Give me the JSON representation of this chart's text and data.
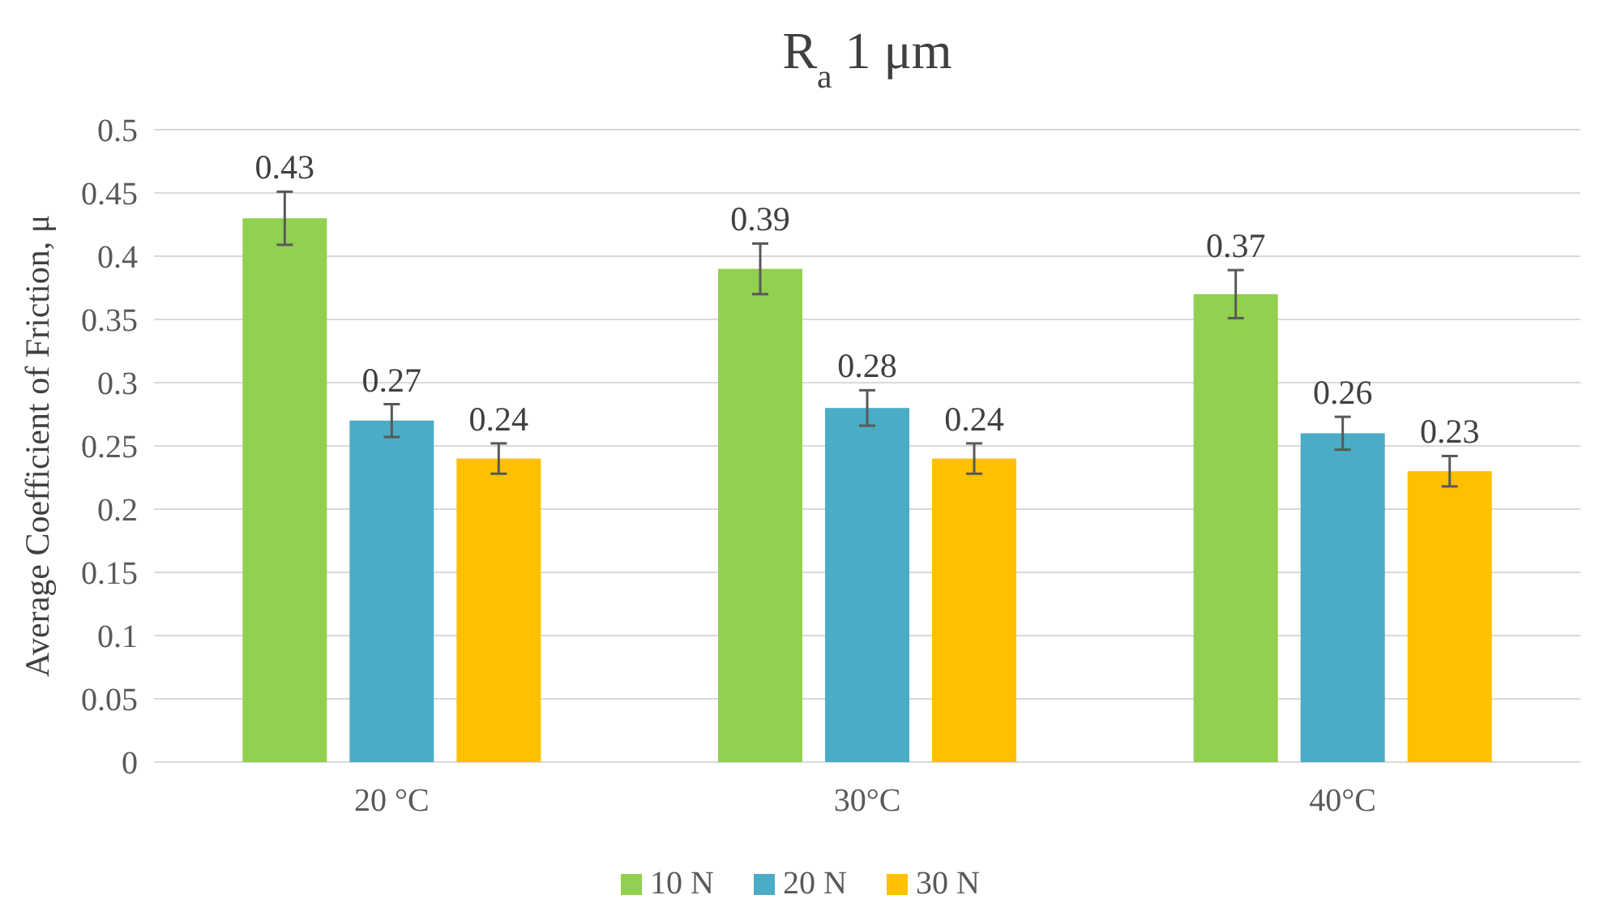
{
  "chart_data": {
    "type": "bar",
    "title": "R$_{a}$ 1 μm",
    "ylabel": "Average Coefficient of Friction, μ",
    "categories": [
      "20 °C",
      "30°C",
      "40°C"
    ],
    "series": [
      {
        "name": "10 N",
        "color": "#92d050",
        "values": [
          0.43,
          0.39,
          0.37
        ],
        "errors": [
          0.021,
          0.02,
          0.019
        ]
      },
      {
        "name": "20 N",
        "color": "#4bacc6",
        "values": [
          0.27,
          0.28,
          0.26
        ],
        "errors": [
          0.013,
          0.014,
          0.013
        ]
      },
      {
        "name": "30 N",
        "color": "#ffc000",
        "values": [
          0.24,
          0.24,
          0.23
        ],
        "errors": [
          0.012,
          0.012,
          0.012
        ]
      }
    ],
    "ylim": [
      0,
      0.5
    ],
    "yticks": [
      0,
      0.05,
      0.1,
      0.15,
      0.2,
      0.25,
      0.3,
      0.35,
      0.4,
      0.45,
      0.5
    ],
    "grid": "y",
    "legend": "bottom",
    "data_labels": true
  }
}
